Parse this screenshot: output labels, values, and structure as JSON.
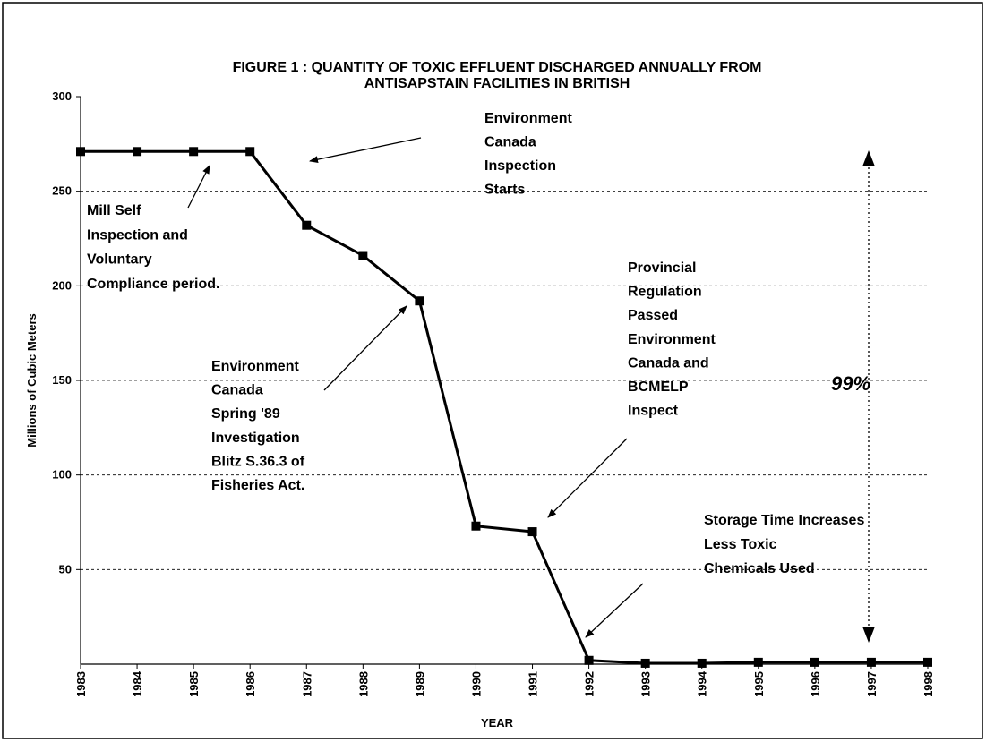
{
  "chart_data": {
    "type": "line",
    "title": [
      "FIGURE 1 :  QUANTITY OF TOXIC EFFLUENT DISCHARGED ANNUALLY FROM",
      "ANTISAPSTAIN FACILITIES IN BRITISH"
    ],
    "x_label": "YEAR",
    "y_label": "Millions of Cubic Meters",
    "categories": [
      "1983",
      "1984",
      "1985",
      "1986",
      "1987",
      "1988",
      "1989",
      "1990",
      "1991",
      "1992",
      "1993",
      "1994",
      "1995",
      "1996",
      "1997",
      "1998"
    ],
    "series": [
      {
        "color": "#000000",
        "values": [
          271,
          271,
          271,
          271,
          232,
          216,
          192,
          73,
          70,
          2,
          0.5,
          0.5,
          1,
          1,
          1,
          1
        ]
      }
    ],
    "ylim": [
      0,
      300
    ],
    "yticks": [
      50,
      100,
      150,
      200,
      250,
      300
    ],
    "grid": true,
    "annotations": [
      {
        "lines": [
          "Environment",
          "Canada",
          "Inspection",
          "Starts"
        ]
      },
      {
        "lines": [
          "Mill Self",
          "Inspection and",
          "Voluntary",
          "Compliance period."
        ]
      },
      {
        "lines": [
          "Environment",
          "Canada",
          "Spring '89",
          "Investigation",
          "Blitz S.36.3 of",
          "Fisheries Act."
        ]
      },
      {
        "lines": [
          "Provincial",
          "Regulation",
          "Passed",
          "Environment",
          "Canada and",
          "BCMELP",
          "Inspect"
        ]
      },
      {
        "lines": [
          "Storage Time Increases",
          "Less Toxic",
          "Chemicals Used"
        ]
      },
      {
        "lines": [
          "99%"
        ]
      }
    ]
  }
}
